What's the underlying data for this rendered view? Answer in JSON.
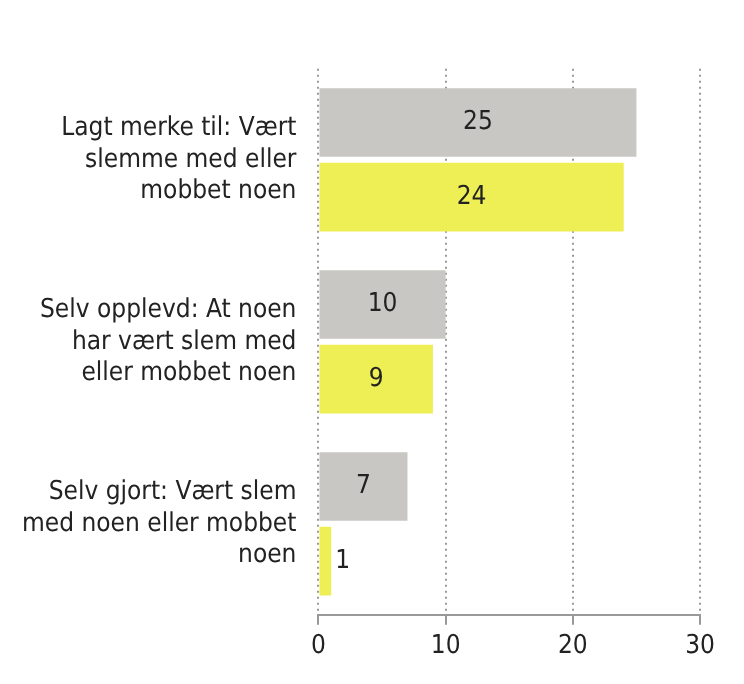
{
  "chart_data": {
    "type": "bar",
    "orientation": "horizontal",
    "categories": [
      "Lagt merke til: Vært slemme med eller mobbet noen",
      "Selv opplevd: At noen har vært slem med eller mobbet noen",
      "Selv gjort: Vært slem med noen eller mobbet noen"
    ],
    "series": [
      {
        "color": "#c9c7c3",
        "values": [
          25,
          10,
          7
        ]
      },
      {
        "color": "#eeee55",
        "values": [
          24,
          9,
          1
        ]
      }
    ],
    "xlim": [
      0,
      30
    ],
    "xticks": [
      0,
      10,
      20,
      30
    ],
    "grid": "x",
    "data_labels": true,
    "legend": false
  }
}
